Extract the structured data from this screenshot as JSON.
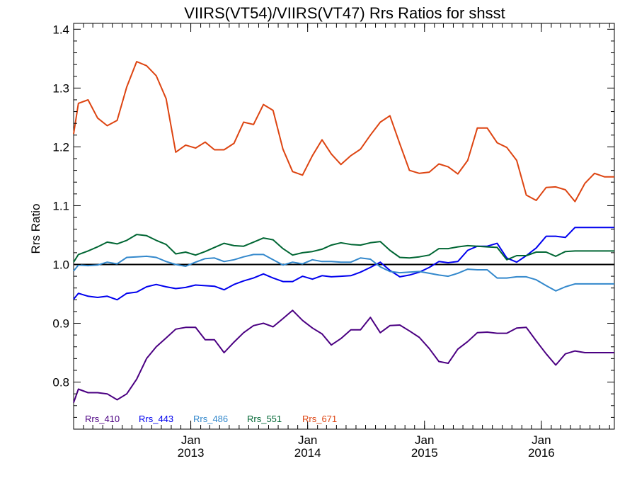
{
  "chart_data": {
    "type": "line",
    "title": "VIIRS(VT54)/VIIRS(VT47)  Rrs Ratios for shsst",
    "xlabel": "",
    "ylabel": "Rrs Ratio",
    "xlim": [
      "2012-01-01",
      "2016-08-16"
    ],
    "ylim": [
      0.72,
      1.41
    ],
    "y_ticks": [
      "0.8",
      "0.9",
      "1.0",
      "1.1",
      "1.2",
      "1.3",
      "1.4"
    ],
    "x_ticks": [
      {
        "date": "2013-01-01",
        "month": "Jan",
        "year": "2013"
      },
      {
        "date": "2014-01-01",
        "month": "Jan",
        "year": "2014"
      },
      {
        "date": "2015-01-01",
        "month": "Jan",
        "year": "2015"
      },
      {
        "date": "2016-01-01",
        "month": "Jan",
        "year": "2016"
      }
    ],
    "grid": false,
    "reference_line": 1.0,
    "legend_position": "bottom-left",
    "x": [
      "2012-01-01",
      "2012-01-16",
      "2012-02-15",
      "2012-03-16",
      "2012-04-15",
      "2012-05-16",
      "2012-06-15",
      "2012-07-16",
      "2012-08-16",
      "2012-09-15",
      "2012-10-16",
      "2012-11-15",
      "2012-12-16",
      "2013-01-16",
      "2013-02-15",
      "2013-03-16",
      "2013-04-15",
      "2013-05-16",
      "2013-06-15",
      "2013-07-16",
      "2013-08-16",
      "2013-09-15",
      "2013-10-16",
      "2013-11-15",
      "2013-12-16",
      "2014-01-16",
      "2014-02-15",
      "2014-03-16",
      "2014-04-15",
      "2014-05-16",
      "2014-06-15",
      "2014-07-16",
      "2014-08-16",
      "2014-09-15",
      "2014-10-16",
      "2014-11-15",
      "2014-12-16",
      "2015-01-16",
      "2015-02-15",
      "2015-03-16",
      "2015-04-15",
      "2015-05-16",
      "2015-06-15",
      "2015-07-16",
      "2015-08-16",
      "2015-09-15",
      "2015-10-16",
      "2015-11-15",
      "2015-12-16",
      "2016-01-16",
      "2016-02-15",
      "2016-03-16",
      "2016-04-15",
      "2016-05-16",
      "2016-06-15",
      "2016-07-16",
      "2016-08-16"
    ],
    "series": [
      {
        "name": "Rrs_410",
        "color": "#4B0082",
        "values": [
          0.765,
          0.788,
          0.782,
          0.782,
          0.78,
          0.77,
          0.78,
          0.805,
          0.84,
          0.86,
          0.875,
          0.89,
          0.893,
          0.893,
          0.872,
          0.872,
          0.85,
          0.868,
          0.884,
          0.896,
          0.9,
          0.894,
          0.908,
          0.922,
          0.905,
          0.892,
          0.882,
          0.863,
          0.874,
          0.889,
          0.889,
          0.91,
          0.884,
          0.896,
          0.897,
          0.887,
          0.876,
          0.857,
          0.835,
          0.832,
          0.856,
          0.869,
          0.884,
          0.885,
          0.883,
          0.883,
          0.892,
          0.893,
          0.87,
          0.848,
          0.829,
          0.848,
          0.853,
          0.85,
          0.85,
          0.85,
          0.85
        ]
      },
      {
        "name": "Rrs_443",
        "color": "#0000EE",
        "values": [
          0.941,
          0.951,
          0.946,
          0.944,
          0.946,
          0.94,
          0.951,
          0.953,
          0.962,
          0.966,
          0.962,
          0.959,
          0.961,
          0.965,
          0.964,
          0.963,
          0.957,
          0.966,
          0.972,
          0.977,
          0.984,
          0.977,
          0.971,
          0.971,
          0.98,
          0.975,
          0.981,
          0.979,
          0.98,
          0.981,
          0.987,
          0.995,
          1.004,
          0.99,
          0.979,
          0.982,
          0.987,
          0.995,
          1.005,
          1.003,
          1.005,
          1.024,
          1.031,
          1.031,
          1.036,
          1.011,
          1.004,
          1.015,
          1.028,
          1.048,
          1.048,
          1.046,
          1.063,
          1.063,
          1.063,
          1.063,
          1.063
        ]
      },
      {
        "name": "Rrs_486",
        "color": "#3388CC",
        "values": [
          0.989,
          0.999,
          0.998,
          0.999,
          1.004,
          1.001,
          1.012,
          1.013,
          1.014,
          1.012,
          1.005,
          1.0,
          0.997,
          1.004,
          1.01,
          1.011,
          1.005,
          1.008,
          1.013,
          1.017,
          1.017,
          1.008,
          0.999,
          1.004,
          1.001,
          1.008,
          1.005,
          1.005,
          1.004,
          1.004,
          1.011,
          1.009,
          0.996,
          0.988,
          0.986,
          0.987,
          0.988,
          0.985,
          0.982,
          0.98,
          0.985,
          0.992,
          0.991,
          0.991,
          0.977,
          0.977,
          0.979,
          0.979,
          0.974,
          0.964,
          0.955,
          0.962,
          0.967,
          0.967,
          0.967,
          0.967,
          0.967
        ]
      },
      {
        "name": "Rrs_551",
        "color": "#006633",
        "values": [
          1.004,
          1.017,
          1.023,
          1.03,
          1.038,
          1.035,
          1.041,
          1.051,
          1.049,
          1.041,
          1.034,
          1.018,
          1.021,
          1.016,
          1.022,
          1.029,
          1.036,
          1.032,
          1.031,
          1.038,
          1.045,
          1.042,
          1.027,
          1.016,
          1.02,
          1.022,
          1.026,
          1.033,
          1.037,
          1.034,
          1.033,
          1.037,
          1.039,
          1.024,
          1.012,
          1.011,
          1.013,
          1.016,
          1.027,
          1.027,
          1.03,
          1.032,
          1.031,
          1.03,
          1.029,
          1.008,
          1.015,
          1.015,
          1.021,
          1.021,
          1.014,
          1.022,
          1.023,
          1.023,
          1.023,
          1.023,
          1.023
        ]
      },
      {
        "name": "Rrs_671",
        "color": "#DD4411",
        "values": [
          1.222,
          1.274,
          1.28,
          1.249,
          1.236,
          1.245,
          1.302,
          1.345,
          1.338,
          1.321,
          1.282,
          1.191,
          1.203,
          1.198,
          1.208,
          1.195,
          1.195,
          1.206,
          1.242,
          1.238,
          1.272,
          1.262,
          1.196,
          1.158,
          1.152,
          1.185,
          1.212,
          1.188,
          1.17,
          1.185,
          1.196,
          1.22,
          1.242,
          1.253,
          1.205,
          1.16,
          1.155,
          1.157,
          1.171,
          1.166,
          1.154,
          1.177,
          1.232,
          1.232,
          1.207,
          1.199,
          1.177,
          1.118,
          1.109,
          1.131,
          1.132,
          1.127,
          1.107,
          1.138,
          1.155,
          1.149,
          1.149
        ]
      }
    ]
  }
}
